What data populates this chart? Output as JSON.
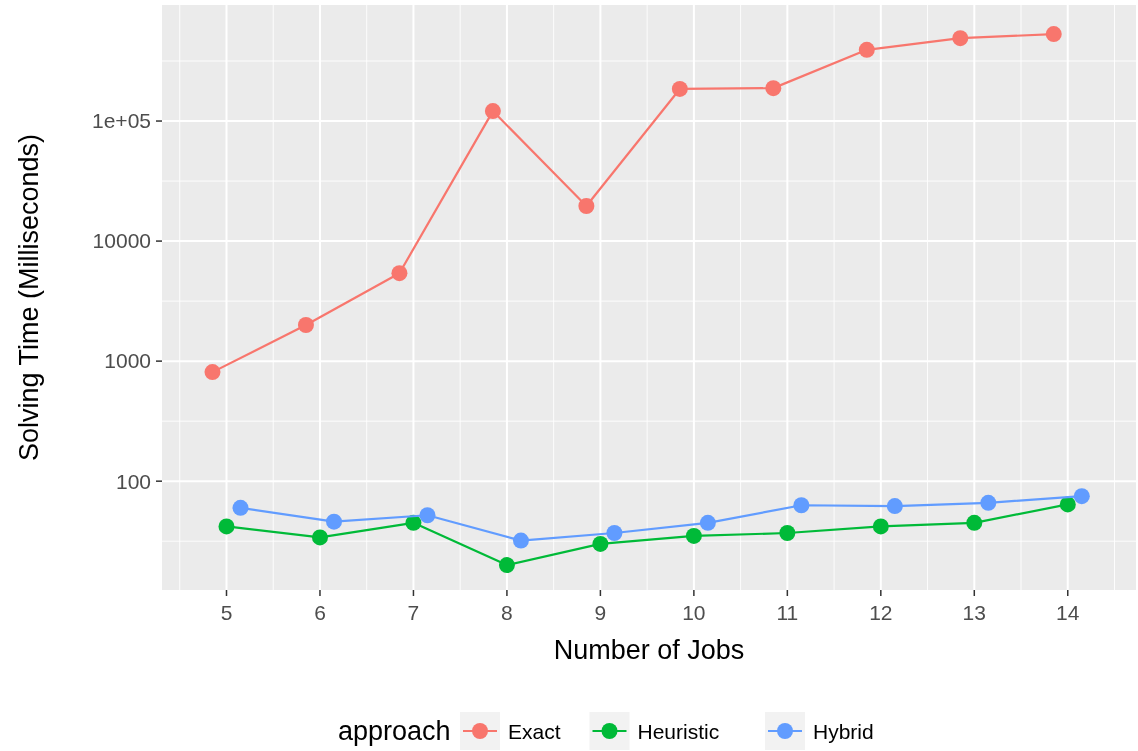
{
  "chart_data": {
    "type": "line",
    "xlabel": "Number of Jobs",
    "ylabel": "Solving Time (Milliseconds)",
    "legend_title": "approach",
    "legend": "bottom",
    "grid": true,
    "marker": "circle",
    "log": "y",
    "xlim": [
      4.31,
      14.73
    ],
    "xticks": [
      5,
      6,
      7,
      8,
      9,
      10,
      11,
      12,
      13,
      14
    ],
    "ylim": [
      12.4,
      926000
    ],
    "yticks": [
      {
        "value": 100,
        "label": "100"
      },
      {
        "value": 1000,
        "label": "1000"
      },
      {
        "value": 10000,
        "label": "10000"
      },
      {
        "value": 100000,
        "label": "1e+05"
      }
    ],
    "series": [
      {
        "name": "Exact",
        "color": "#f8766d",
        "x": [
          4.85,
          5.85,
          6.85,
          7.85,
          8.85,
          9.85,
          10.85,
          11.85,
          12.85,
          13.85
        ],
        "values": [
          810,
          2000,
          5400,
          121000,
          19600,
          185000,
          188000,
          392000,
          490000,
          530000
        ]
      },
      {
        "name": "Heuristic",
        "color": "#00ba38",
        "x": [
          5,
          6,
          7,
          8,
          9,
          10,
          11,
          12,
          13,
          14
        ],
        "values": [
          42,
          34,
          45,
          20,
          30,
          35,
          37,
          42,
          45,
          64
        ]
      },
      {
        "name": "Hybrid",
        "color": "#619cff",
        "x": [
          5.15,
          6.15,
          7.15,
          8.15,
          9.15,
          10.15,
          11.15,
          12.15,
          13.15,
          14.15
        ],
        "values": [
          60,
          46,
          52,
          32,
          37,
          45,
          63,
          62,
          66,
          75
        ]
      }
    ]
  }
}
